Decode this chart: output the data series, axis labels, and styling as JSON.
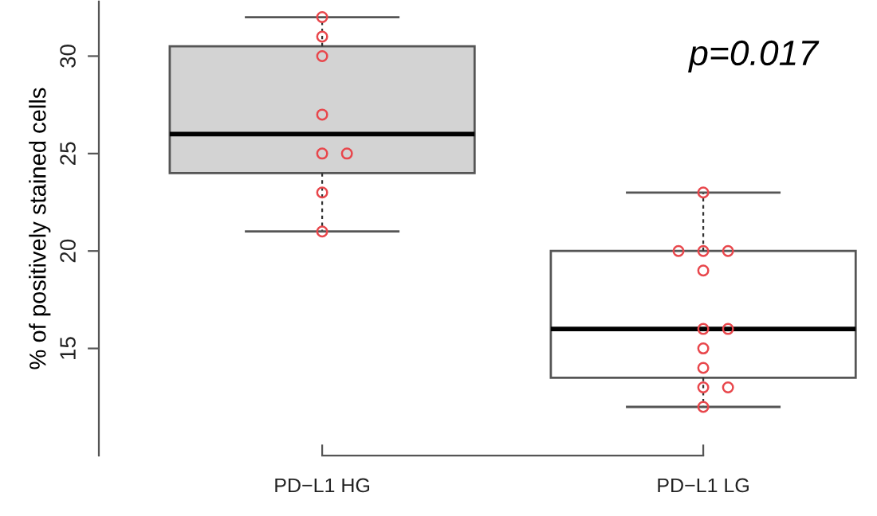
{
  "chart_data": {
    "type": "box",
    "categories": [
      "PD−L1 HG",
      "PD−L1 LG"
    ],
    "boxes": [
      {
        "low": 21,
        "q1": 24,
        "median": 26,
        "q3": 30.5,
        "high": 32
      },
      {
        "low": 12,
        "q1": 13.5,
        "median": 16,
        "q3": 20,
        "high": 23
      }
    ],
    "colors": [
      "#d3d3d3",
      "#ffffff"
    ],
    "series": [
      {
        "type": "scatter",
        "color": "#e8474c",
        "marker": "circle",
        "x": [
          "PD−L1 HG",
          "PD−L1 HG",
          "PD−L1 HG",
          "PD−L1 HG",
          "PD−L1 HG",
          "PD−L1 HG",
          "PD−L1 HG",
          "PD−L1 HG",
          "PD−L1 LG",
          "PD−L1 LG",
          "PD−L1 LG",
          "PD−L1 LG",
          "PD−L1 LG",
          "PD−L1 LG",
          "PD−L1 LG",
          "PD−L1 LG",
          "PD−L1 LG",
          "PD−L1 LG",
          "PD−L1 LG",
          "PD−L1 LG"
        ],
        "values": [
          32,
          31,
          30,
          27,
          25,
          25,
          23,
          21,
          23,
          20,
          20,
          20,
          19,
          16,
          16,
          15,
          14,
          13,
          13,
          12
        ]
      }
    ],
    "ylabel": "% of positively stained cells",
    "ylim": [
      9.5,
      32.8
    ],
    "yticks": [
      15,
      20,
      25,
      30
    ],
    "annotations": [
      "p=0.017"
    ],
    "grid": false
  }
}
